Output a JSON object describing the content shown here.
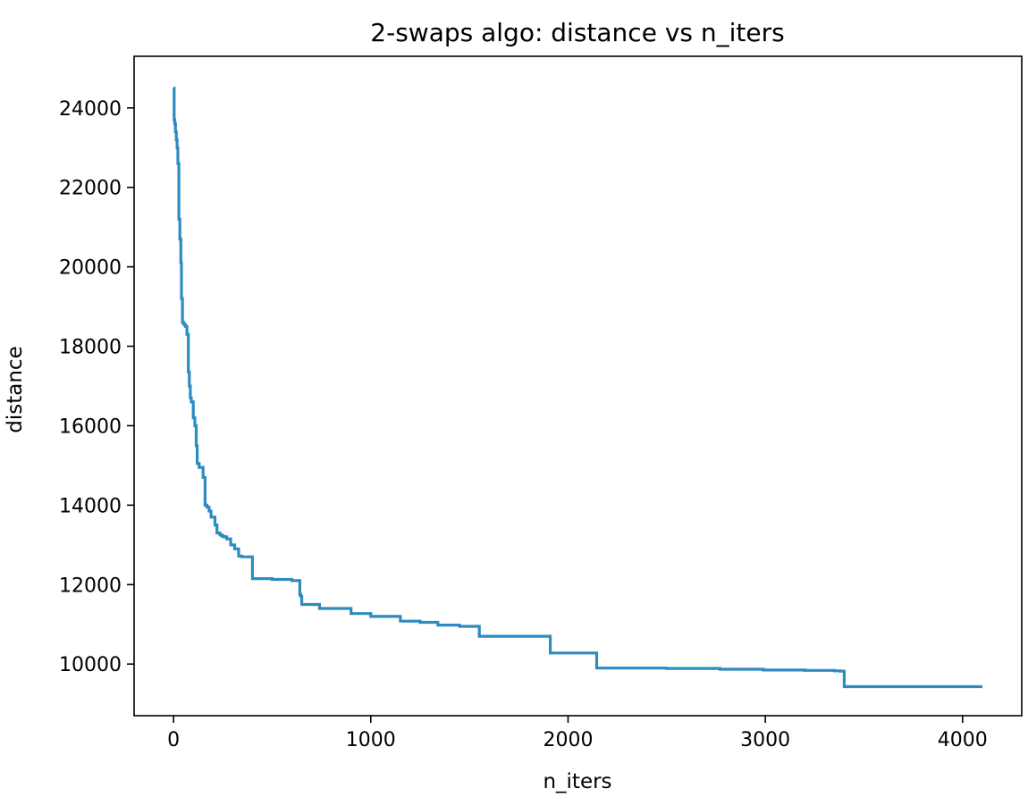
{
  "chart_data": {
    "type": "line",
    "title": "2-swaps algo: distance vs n_iters",
    "xlabel": "n_iters",
    "ylabel": "distance",
    "xlim": [
      -200,
      4300
    ],
    "ylim": [
      8700,
      25300
    ],
    "xticks": [
      0,
      1000,
      2000,
      3000,
      4000
    ],
    "yticks": [
      10000,
      12000,
      14000,
      16000,
      18000,
      20000,
      22000,
      24000
    ],
    "grid": false,
    "color": "#2e8bc0",
    "series": [
      {
        "step": true,
        "x": [
          0,
          3,
          6,
          10,
          14,
          18,
          22,
          27,
          32,
          37,
          40,
          45,
          52,
          60,
          68,
          75,
          80,
          85,
          90,
          100,
          108,
          115,
          120,
          130,
          150,
          160,
          170,
          180,
          190,
          210,
          220,
          235,
          245,
          250,
          260,
          270,
          290,
          310,
          330,
          345,
          360,
          400,
          440,
          500,
          540,
          600,
          640,
          645,
          650,
          700,
          740,
          800,
          900,
          1000,
          1050,
          1100,
          1150,
          1200,
          1250,
          1300,
          1340,
          1400,
          1450,
          1500,
          1550,
          1600,
          1700,
          1800,
          1910,
          2000,
          2100,
          2145,
          2300,
          2500,
          2700,
          2770,
          2990,
          3200,
          3350,
          3380,
          3400,
          3700,
          4100
        ],
        "y": [
          24500,
          23700,
          23600,
          23400,
          23200,
          23000,
          22600,
          21200,
          20700,
          20100,
          19200,
          18600,
          18550,
          18500,
          18300,
          17350,
          17000,
          16700,
          16600,
          16200,
          16000,
          15500,
          15050,
          14950,
          14700,
          14000,
          13950,
          13850,
          13700,
          13500,
          13300,
          13250,
          13230,
          13210,
          13200,
          13150,
          13000,
          12900,
          12720,
          12700,
          12700,
          12150,
          12150,
          12130,
          12130,
          12100,
          11750,
          11700,
          11500,
          11500,
          11400,
          11400,
          11270,
          11200,
          11200,
          11200,
          11080,
          11080,
          11050,
          11050,
          10980,
          10980,
          10950,
          10950,
          10700,
          10700,
          10700,
          10700,
          10280,
          10280,
          10280,
          9900,
          9900,
          9890,
          9890,
          9870,
          9850,
          9840,
          9830,
          9820,
          9430,
          9430,
          9430
        ]
      }
    ]
  }
}
